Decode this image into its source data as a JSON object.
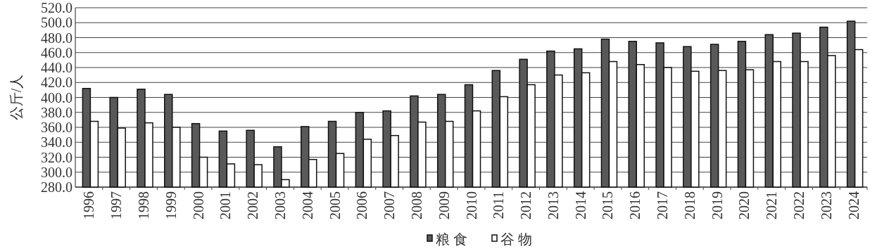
{
  "chart_data": {
    "type": "bar",
    "ylabel": "公斤/人",
    "categories": [
      "1996",
      "1997",
      "1998",
      "1999",
      "2000",
      "2001",
      "2002",
      "2003",
      "2004",
      "2005",
      "2006",
      "2007",
      "2008",
      "2009",
      "2010",
      "2011",
      "2012",
      "2013",
      "2014",
      "2015",
      "2016",
      "2017",
      "2018",
      "2019",
      "2020",
      "2021",
      "2022",
      "2023",
      "2024"
    ],
    "series": [
      {
        "name": "粮食",
        "color": "#595959",
        "values": [
          412,
          400,
          411,
          404,
          365,
          355,
          356,
          334,
          361,
          368,
          380,
          382,
          402,
          404,
          417,
          436,
          451,
          462,
          465,
          478,
          475,
          473,
          468,
          471,
          475,
          484,
          486,
          494,
          502
        ]
      },
      {
        "name": "谷物",
        "color": "#ffffff",
        "values": [
          368,
          359,
          366,
          360,
          320,
          311,
          310,
          290,
          317,
          325,
          344,
          349,
          367,
          368,
          382,
          401,
          417,
          430,
          433,
          448,
          444,
          440,
          435,
          436,
          437,
          448,
          448,
          456,
          464
        ]
      }
    ],
    "ylim": [
      280,
      520
    ],
    "yticks": [
      {
        "value": 280,
        "label": "280.0"
      },
      {
        "value": 300,
        "label": "300.0"
      },
      {
        "value": 320,
        "label": "320.0"
      },
      {
        "value": 340,
        "label": "340.0"
      },
      {
        "value": 360,
        "label": "360.0"
      },
      {
        "value": 380,
        "label": "380.0"
      },
      {
        "value": 400,
        "label": "400.0"
      },
      {
        "value": 420,
        "label": "420.0"
      },
      {
        "value": 440,
        "label": "440.0"
      },
      {
        "value": 460,
        "label": "460.0"
      },
      {
        "value": 480,
        "label": "480.0"
      },
      {
        "value": 500,
        "label": "500.0"
      },
      {
        "value": 520,
        "label": "520.0"
      }
    ],
    "grid": "y",
    "legend": "bottom"
  }
}
